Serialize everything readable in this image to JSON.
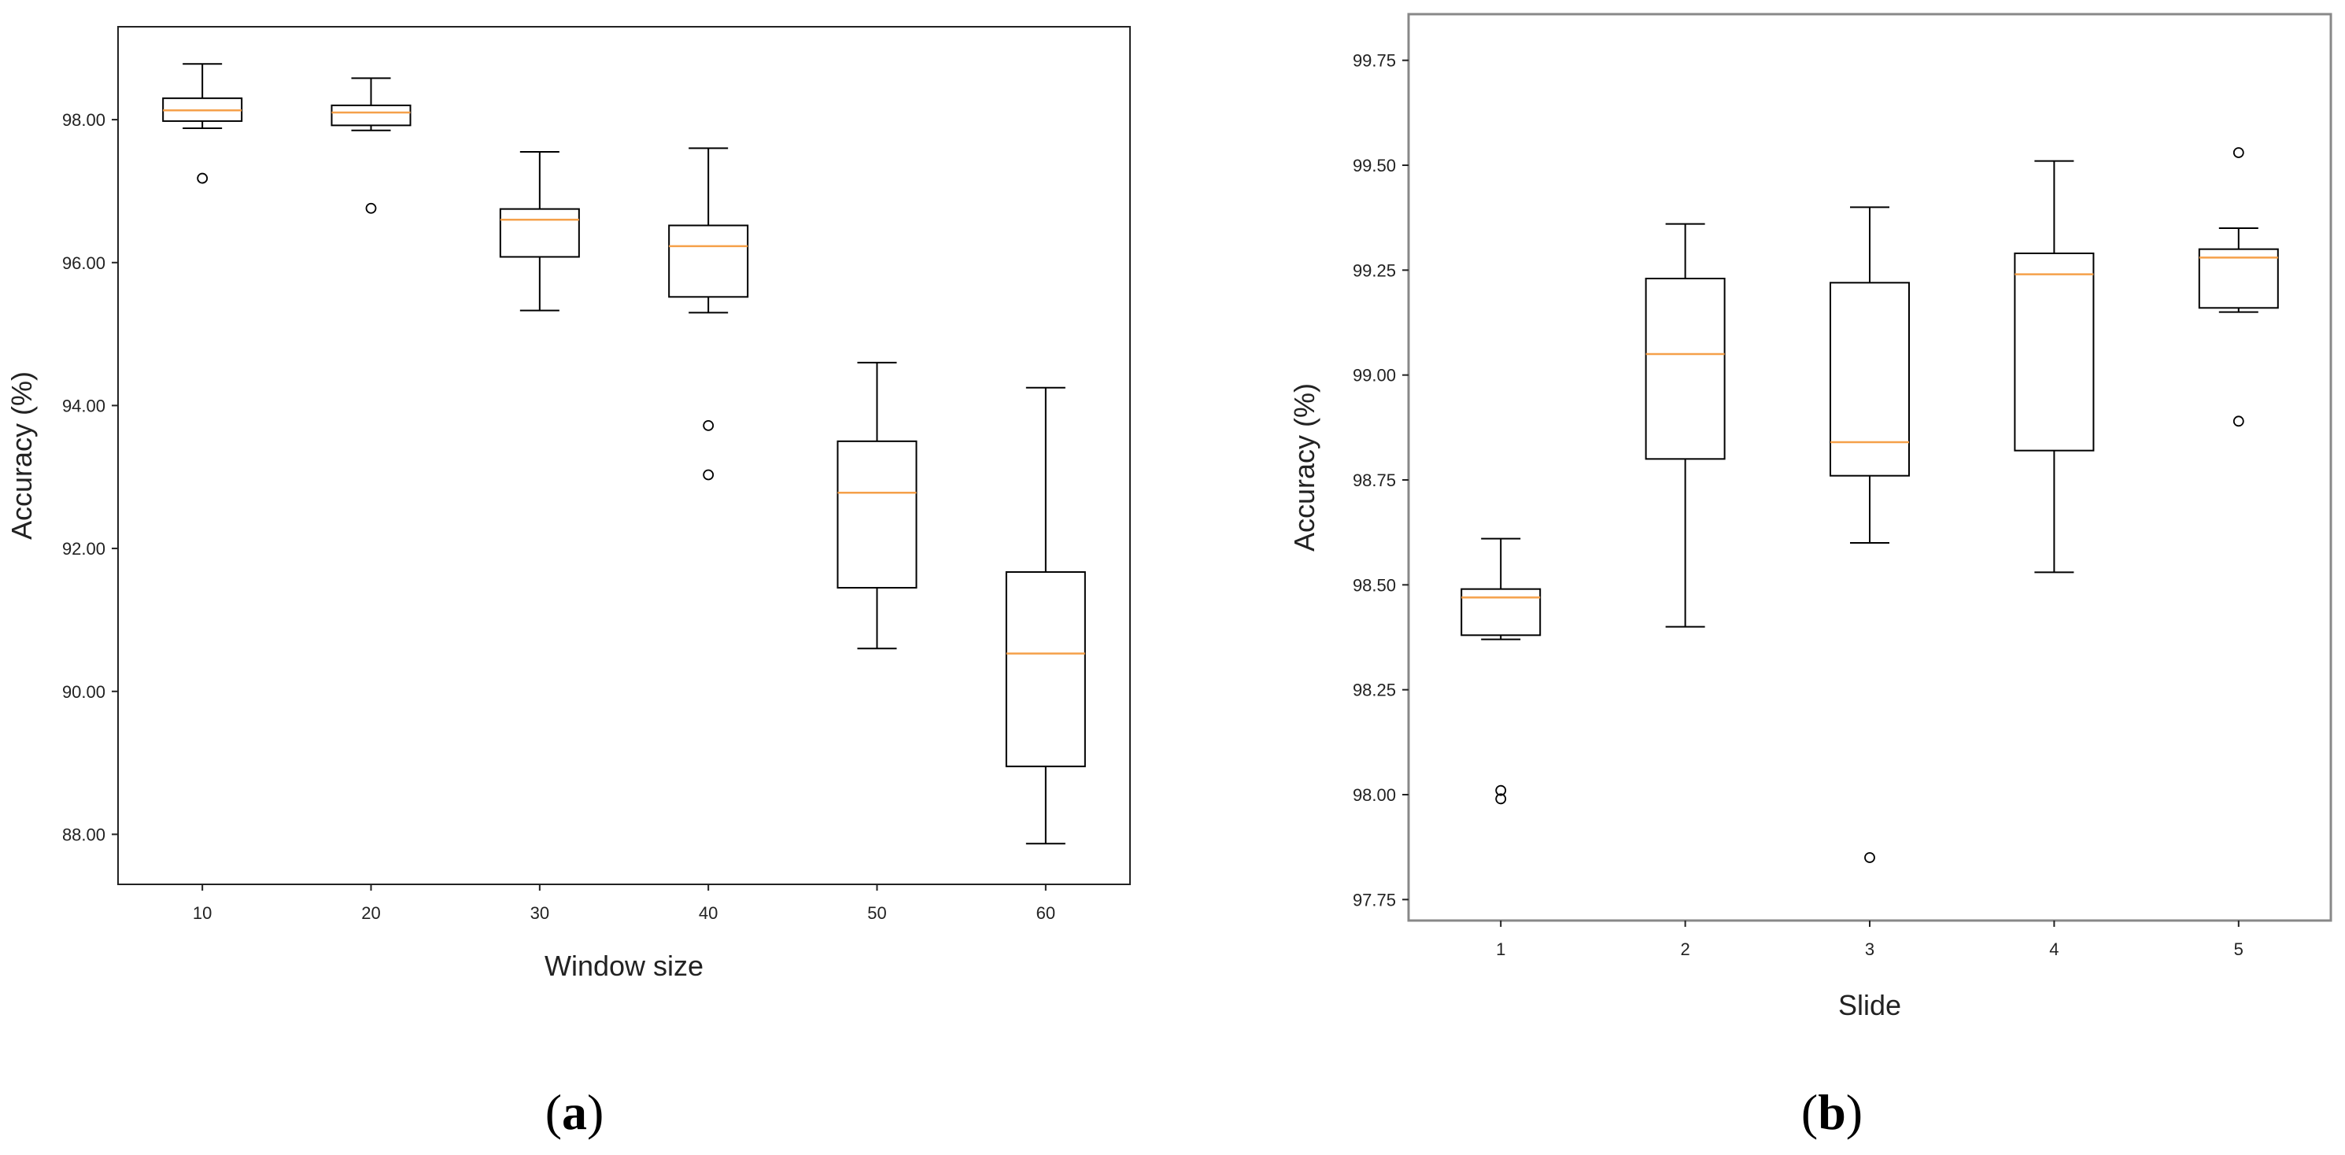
{
  "chart_data": [
    {
      "type": "box",
      "panel_label": "a",
      "xlabel": "Window size",
      "ylabel": "Accuracy (%)",
      "categories": [
        "10",
        "20",
        "30",
        "40",
        "50",
        "60"
      ],
      "ylim": [
        87.3,
        99.3
      ],
      "yticks": [
        "88.00",
        "90.00",
        "92.00",
        "94.00",
        "96.00",
        "98.00"
      ],
      "boxes": [
        {
          "category": "10",
          "whisker_low": 97.88,
          "q1": 97.98,
          "median": 98.13,
          "q3": 98.3,
          "whisker_high": 98.78,
          "outliers": [
            97.18
          ]
        },
        {
          "category": "20",
          "whisker_low": 97.85,
          "q1": 97.92,
          "median": 98.1,
          "q3": 98.2,
          "whisker_high": 98.58,
          "outliers": [
            96.76
          ]
        },
        {
          "category": "30",
          "whisker_low": 95.33,
          "q1": 96.08,
          "median": 96.6,
          "q3": 96.75,
          "whisker_high": 97.55,
          "outliers": []
        },
        {
          "category": "40",
          "whisker_low": 95.3,
          "q1": 95.52,
          "median": 96.23,
          "q3": 96.52,
          "whisker_high": 97.6,
          "outliers": [
            93.72,
            93.03
          ]
        },
        {
          "category": "50",
          "whisker_low": 90.6,
          "q1": 91.45,
          "median": 92.78,
          "q3": 93.5,
          "whisker_high": 94.6,
          "outliers": []
        },
        {
          "category": "60",
          "whisker_low": 87.87,
          "q1": 88.95,
          "median": 90.53,
          "q3": 91.67,
          "whisker_high": 94.25,
          "outliers": []
        }
      ]
    },
    {
      "type": "box",
      "panel_label": "b",
      "xlabel": "Slide",
      "ylabel": "Accuracy (%)",
      "categories": [
        "1",
        "2",
        "3",
        "4",
        "5"
      ],
      "ylim": [
        97.7,
        99.86
      ],
      "yticks": [
        "97.75",
        "98.00",
        "98.25",
        "98.50",
        "98.75",
        "99.00",
        "99.25",
        "99.50",
        "99.75"
      ],
      "boxes": [
        {
          "category": "1",
          "whisker_low": 98.37,
          "q1": 98.38,
          "median": 98.47,
          "q3": 98.49,
          "whisker_high": 98.61,
          "outliers": [
            97.99,
            98.01
          ]
        },
        {
          "category": "2",
          "whisker_low": 98.4,
          "q1": 98.8,
          "median": 99.05,
          "q3": 99.23,
          "whisker_high": 99.36,
          "outliers": []
        },
        {
          "category": "3",
          "whisker_low": 98.6,
          "q1": 98.76,
          "median": 98.84,
          "q3": 99.22,
          "whisker_high": 99.4,
          "outliers": [
            97.85
          ]
        },
        {
          "category": "4",
          "whisker_low": 98.53,
          "q1": 98.82,
          "median": 99.24,
          "q3": 99.29,
          "whisker_high": 99.51,
          "outliers": []
        },
        {
          "category": "5",
          "whisker_low": 99.15,
          "q1": 99.16,
          "median": 99.28,
          "q3": 99.3,
          "whisker_high": 99.35,
          "outliers": [
            98.89,
            99.53
          ]
        }
      ]
    }
  ],
  "colors": {
    "box": "#000000",
    "median": "#f5a04a",
    "axis": "#222222",
    "panel_b_frame": "#888888"
  }
}
